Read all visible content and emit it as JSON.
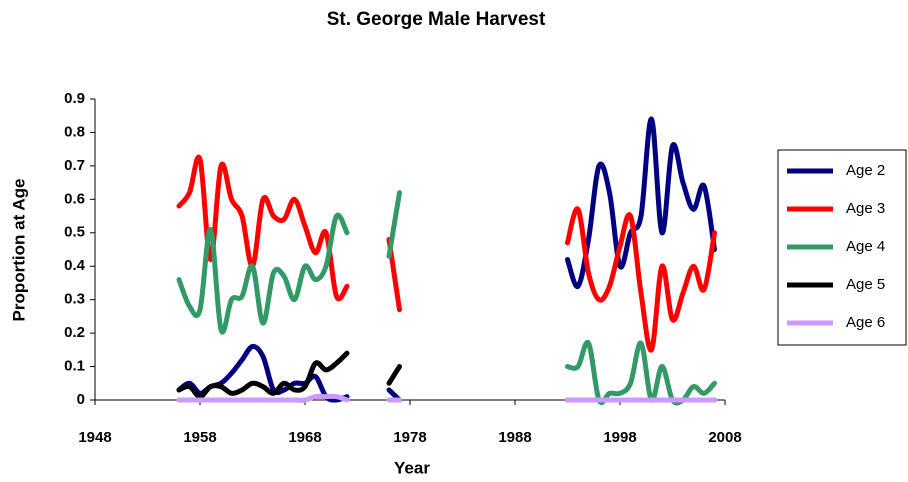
{
  "chart_data": {
    "type": "line",
    "title": "St. George Male Harvest",
    "x_label": "Year",
    "y_label": "Proportion at Age",
    "x": [
      1956,
      1957,
      1958,
      1959,
      1960,
      1961,
      1962,
      1963,
      1964,
      1965,
      1966,
      1967,
      1968,
      1969,
      1970,
      1971,
      1972,
      1974,
      1976,
      1977,
      1985,
      1993,
      1994,
      1995,
      1996,
      1997,
      1998,
      1999,
      2000,
      2001,
      2002,
      2003,
      2004,
      2005,
      2006,
      2007
    ],
    "series": [
      {
        "name": "Age 2",
        "color": "#000080",
        "values": [
          0.03,
          0.05,
          0.02,
          0.04,
          0.05,
          0.08,
          0.12,
          0.16,
          0.13,
          0.03,
          0.03,
          0.05,
          0.05,
          0.07,
          0.01,
          0.0,
          0.01,
          null,
          0.03,
          0.0,
          null,
          0.42,
          0.34,
          0.48,
          0.7,
          0.62,
          0.4,
          0.5,
          0.55,
          0.84,
          0.5,
          0.76,
          0.65,
          0.57,
          0.64,
          0.45
        ]
      },
      {
        "name": "Age 3",
        "color": "#ff0000",
        "values": [
          0.58,
          0.62,
          0.72,
          0.42,
          0.7,
          0.6,
          0.55,
          0.4,
          0.6,
          0.55,
          0.54,
          0.6,
          0.52,
          0.44,
          0.5,
          0.31,
          0.34,
          null,
          0.48,
          0.27,
          null,
          0.47,
          0.57,
          0.38,
          0.3,
          0.34,
          0.46,
          0.55,
          0.32,
          0.15,
          0.4,
          0.24,
          0.32,
          0.4,
          0.33,
          0.5
        ]
      },
      {
        "name": "Age 4",
        "color": "#339966",
        "values": [
          0.36,
          0.28,
          0.27,
          0.51,
          0.21,
          0.3,
          0.31,
          0.4,
          0.23,
          0.38,
          0.37,
          0.3,
          0.4,
          0.36,
          0.4,
          0.55,
          0.5,
          null,
          0.43,
          0.62,
          null,
          0.1,
          0.1,
          0.17,
          0.0,
          0.02,
          0.02,
          0.05,
          0.17,
          0.0,
          0.1,
          0.0,
          0.0,
          0.04,
          0.02,
          0.05
        ]
      },
      {
        "name": "Age 5",
        "color": "#000000",
        "values": [
          0.03,
          0.04,
          0.01,
          0.04,
          0.04,
          0.02,
          0.03,
          0.05,
          0.04,
          0.02,
          0.05,
          0.03,
          0.04,
          0.11,
          0.09,
          0.11,
          0.14,
          null,
          0.05,
          0.1,
          null,
          0,
          0,
          0,
          0,
          0,
          0,
          0,
          0,
          0,
          0,
          0,
          0,
          0,
          0,
          0
        ]
      },
      {
        "name": "Age 6",
        "color": "#cc99ff",
        "values": [
          0,
          0,
          0,
          0,
          0,
          0,
          0,
          0,
          0,
          0,
          0,
          0,
          0,
          0.01,
          0.01,
          0.01,
          0,
          null,
          0,
          0,
          null,
          0,
          0,
          0,
          0,
          0,
          0,
          0,
          0,
          0,
          0,
          0,
          0,
          0,
          0,
          0
        ]
      }
    ],
    "xlim": [
      1948,
      2008
    ],
    "xticks": [
      1948,
      1958,
      1968,
      1978,
      1988,
      1998,
      2008
    ],
    "ylim": [
      0,
      0.9
    ],
    "yticks": [
      0,
      0.1,
      0.2,
      0.3,
      0.4,
      0.5,
      0.6,
      0.7,
      0.8,
      0.9
    ],
    "grid": false,
    "legend": "right"
  }
}
